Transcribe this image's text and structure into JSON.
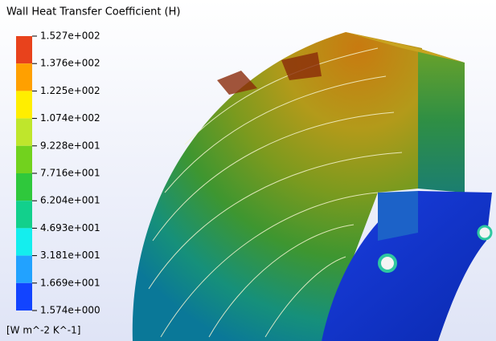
{
  "legend": {
    "title": "Wall Heat Transfer Coefficient (H)",
    "labels": [
      "1.527e+002",
      "1.376e+002",
      "1.225e+002",
      "1.074e+002",
      "9.228e+001",
      "7.716e+001",
      "6.204e+001",
      "4.693e+001",
      "3.181e+001",
      "1.669e+001",
      "1.574e+000"
    ],
    "colors": [
      "#e8421c",
      "#ffa000",
      "#ffee00",
      "#bfe62c",
      "#72d21e",
      "#2fc83c",
      "#12d08c",
      "#14eeee",
      "#22a2ff",
      "#1244ff"
    ],
    "unit": "[W m^-2 K^-1]"
  }
}
